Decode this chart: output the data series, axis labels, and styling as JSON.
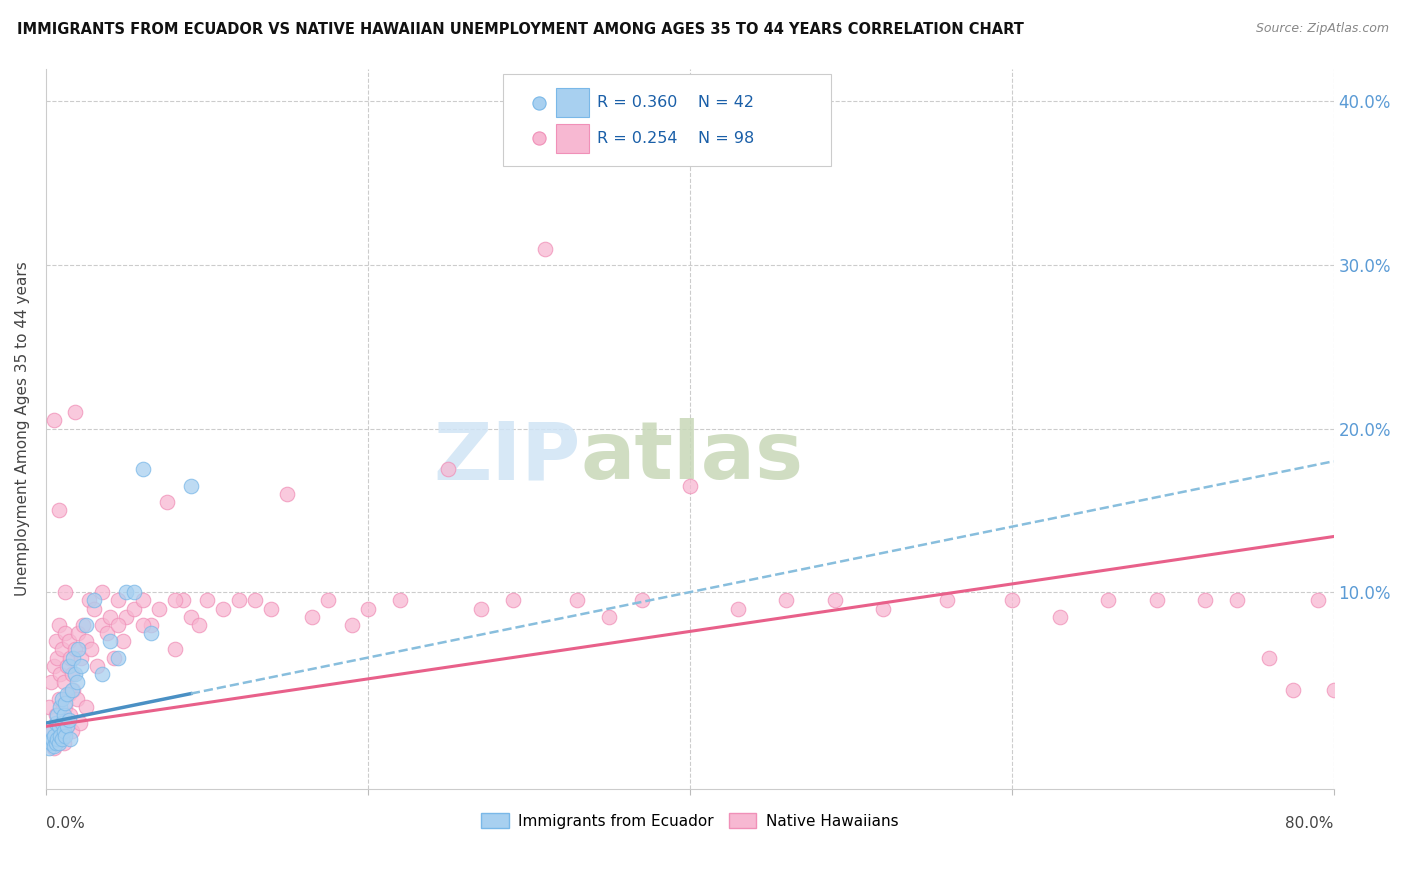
{
  "title": "IMMIGRANTS FROM ECUADOR VS NATIVE HAWAIIAN UNEMPLOYMENT AMONG AGES 35 TO 44 YEARS CORRELATION CHART",
  "source": "Source: ZipAtlas.com",
  "ylabel": "Unemployment Among Ages 35 to 44 years",
  "ytick_values": [
    0.1,
    0.2,
    0.3,
    0.4
  ],
  "xlim": [
    0.0,
    0.8
  ],
  "ylim": [
    -0.02,
    0.42
  ],
  "blue_R": 0.36,
  "blue_N": 42,
  "pink_R": 0.254,
  "pink_N": 98,
  "blue_color": "#a8d0f0",
  "blue_edge": "#7ab8e8",
  "pink_color": "#f7b8d2",
  "pink_edge": "#f090b8",
  "trend_blue_solid": "#4a90c4",
  "trend_blue_dash": "#88bedd",
  "trend_pink": "#e8608a",
  "blue_scatter_x": [
    0.002,
    0.003,
    0.004,
    0.004,
    0.005,
    0.005,
    0.006,
    0.006,
    0.007,
    0.007,
    0.008,
    0.008,
    0.009,
    0.009,
    0.01,
    0.01,
    0.01,
    0.011,
    0.011,
    0.012,
    0.012,
    0.013,
    0.013,
    0.014,
    0.014,
    0.015,
    0.016,
    0.017,
    0.018,
    0.019,
    0.02,
    0.022,
    0.025,
    0.03,
    0.035,
    0.04,
    0.045,
    0.05,
    0.055,
    0.06,
    0.065,
    0.09
  ],
  "blue_scatter_y": [
    0.005,
    0.008,
    0.01,
    0.015,
    0.006,
    0.012,
    0.008,
    0.02,
    0.01,
    0.025,
    0.008,
    0.018,
    0.012,
    0.03,
    0.01,
    0.02,
    0.035,
    0.015,
    0.025,
    0.012,
    0.032,
    0.018,
    0.038,
    0.022,
    0.055,
    0.01,
    0.04,
    0.06,
    0.05,
    0.045,
    0.065,
    0.055,
    0.08,
    0.095,
    0.05,
    0.07,
    0.06,
    0.1,
    0.1,
    0.175,
    0.075,
    0.165
  ],
  "pink_scatter_x": [
    0.002,
    0.003,
    0.004,
    0.005,
    0.005,
    0.006,
    0.006,
    0.007,
    0.007,
    0.008,
    0.008,
    0.009,
    0.009,
    0.01,
    0.01,
    0.011,
    0.011,
    0.012,
    0.012,
    0.013,
    0.013,
    0.014,
    0.014,
    0.015,
    0.015,
    0.016,
    0.016,
    0.017,
    0.018,
    0.019,
    0.02,
    0.021,
    0.022,
    0.023,
    0.025,
    0.027,
    0.028,
    0.03,
    0.032,
    0.035,
    0.038,
    0.04,
    0.042,
    0.045,
    0.048,
    0.05,
    0.055,
    0.06,
    0.065,
    0.07,
    0.075,
    0.08,
    0.085,
    0.09,
    0.095,
    0.1,
    0.11,
    0.12,
    0.13,
    0.14,
    0.15,
    0.165,
    0.175,
    0.19,
    0.2,
    0.22,
    0.25,
    0.27,
    0.29,
    0.31,
    0.33,
    0.35,
    0.37,
    0.4,
    0.43,
    0.46,
    0.49,
    0.52,
    0.56,
    0.6,
    0.63,
    0.66,
    0.69,
    0.72,
    0.74,
    0.76,
    0.775,
    0.79,
    0.8,
    0.005,
    0.008,
    0.012,
    0.018,
    0.025,
    0.035,
    0.045,
    0.06,
    0.08
  ],
  "pink_scatter_y": [
    0.03,
    0.045,
    0.015,
    0.055,
    0.005,
    0.025,
    0.07,
    0.01,
    0.06,
    0.035,
    0.08,
    0.012,
    0.05,
    0.02,
    0.065,
    0.008,
    0.045,
    0.03,
    0.075,
    0.018,
    0.055,
    0.038,
    0.07,
    0.025,
    0.06,
    0.015,
    0.05,
    0.04,
    0.065,
    0.035,
    0.075,
    0.02,
    0.06,
    0.08,
    0.07,
    0.095,
    0.065,
    0.09,
    0.055,
    0.08,
    0.075,
    0.085,
    0.06,
    0.095,
    0.07,
    0.085,
    0.09,
    0.095,
    0.08,
    0.09,
    0.155,
    0.065,
    0.095,
    0.085,
    0.08,
    0.095,
    0.09,
    0.095,
    0.095,
    0.09,
    0.16,
    0.085,
    0.095,
    0.08,
    0.09,
    0.095,
    0.175,
    0.09,
    0.095,
    0.31,
    0.095,
    0.085,
    0.095,
    0.165,
    0.09,
    0.095,
    0.095,
    0.09,
    0.095,
    0.095,
    0.085,
    0.095,
    0.095,
    0.095,
    0.095,
    0.06,
    0.04,
    0.095,
    0.04,
    0.205,
    0.15,
    0.1,
    0.21,
    0.03,
    0.1,
    0.08,
    0.08,
    0.095
  ],
  "legend_label_blue": "Immigrants from Ecuador",
  "legend_label_pink": "Native Hawaiians",
  "watermark_zip_color": "#d0e4f5",
  "watermark_atlas_color": "#c8d8b8"
}
